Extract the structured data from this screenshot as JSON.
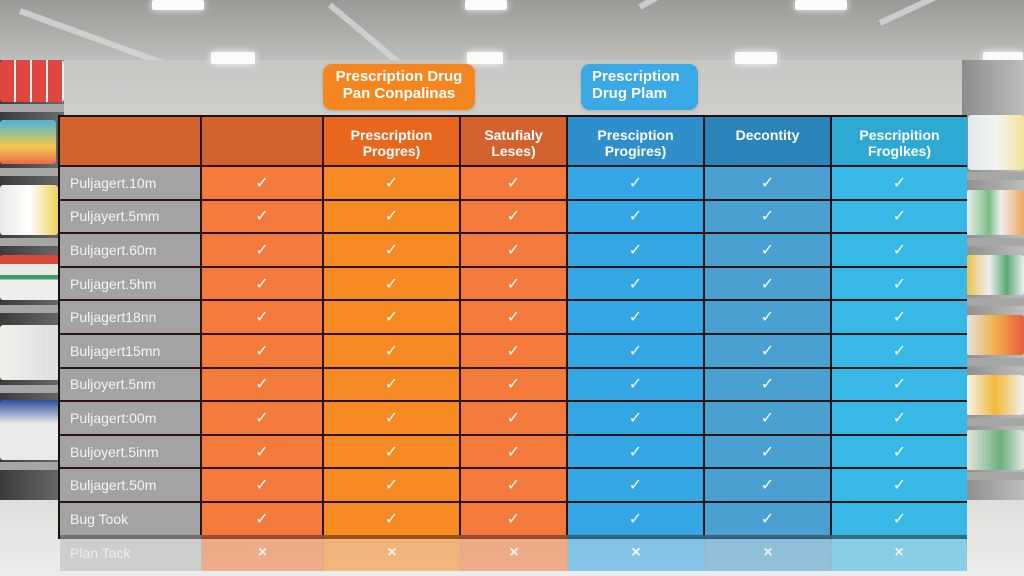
{
  "callouts": {
    "orange": "Prescription Drug Pan Conpalinas",
    "blue": "Prescription Drug Plam"
  },
  "colors": {
    "header_orange": "#d2622e",
    "header_orange_bright": "#e8671f",
    "header_blue": "#2e8fcb",
    "header_blue_dark": "#2a83b9",
    "header_cyan": "#2ea9d3",
    "cell_orange": "#f47a3c",
    "cell_orange_bright": "#f88a24",
    "cell_blue": "#35a6e4",
    "cell_blue_muted": "#4aa0d0",
    "cell_cyan": "#38b8e6",
    "row_label_gray": "#a3a3a3",
    "grid_line": "#2a1414"
  },
  "table": {
    "columns": [
      {
        "label": "",
        "color": "#d2622e"
      },
      {
        "label": "",
        "color": "#d2622e",
        "cell_color": "#f47a3c"
      },
      {
        "label": "Prescription Progres)",
        "color": "#e8671f",
        "cell_color": "#f88a24"
      },
      {
        "label": "Satufialy Leses)",
        "color": "#d2622e",
        "cell_color": "#f47a3c"
      },
      {
        "label": "Presciption Progires)",
        "color": "#2e8fcb",
        "cell_color": "#35a6e4"
      },
      {
        "label": "Decontity",
        "color": "#2a83b9",
        "cell_color": "#4aa0d0"
      },
      {
        "label": "Pescripition Froglkes)",
        "color": "#2ea9d3",
        "cell_color": "#38b8e6"
      }
    ],
    "rows": [
      {
        "label": "Puljagert.10m",
        "values": [
          "✓",
          "✓",
          "✓",
          "✓",
          "✓",
          "✓"
        ]
      },
      {
        "label": "Puljayert.5mm",
        "values": [
          "✓",
          "✓",
          "✓",
          "✓",
          "✓",
          "✓"
        ]
      },
      {
        "label": "Buljagert.60m",
        "values": [
          "✓",
          "✓",
          "✓",
          "✓",
          "✓",
          "✓"
        ]
      },
      {
        "label": "Puljagert.5hm",
        "values": [
          "✓",
          "✓",
          "✓",
          "✓",
          "✓",
          "✓"
        ]
      },
      {
        "label": "Puljagert18nn",
        "values": [
          "✓",
          "✓",
          "✓",
          "✓",
          "✓",
          "✓"
        ]
      },
      {
        "label": "Buljagert15mn",
        "values": [
          "✓",
          "✓",
          "✓",
          "✓",
          "✓",
          "✓"
        ]
      },
      {
        "label": "Buljoyert.5nm",
        "values": [
          "✓",
          "✓",
          "✓",
          "✓",
          "✓",
          "✓"
        ]
      },
      {
        "label": "Puljagert:00m",
        "values": [
          "✓",
          "✓",
          "✓",
          "✓",
          "✓",
          "✓"
        ]
      },
      {
        "label": "Buljoyert.5inm",
        "values": [
          "✓",
          "✓",
          "✓",
          "✓",
          "✓",
          "✓"
        ]
      },
      {
        "label": "Buljagert.50m",
        "values": [
          "✓",
          "✓",
          "✓",
          "✓",
          "✓",
          "✓"
        ]
      },
      {
        "label": "Bug Took",
        "values": [
          "✓",
          "✓",
          "✓",
          "✓",
          "✓",
          "✓"
        ]
      }
    ],
    "faded_row": {
      "label": "Plan Tack",
      "values": [
        "×",
        "×",
        "×",
        "×",
        "×",
        "×"
      ]
    }
  }
}
